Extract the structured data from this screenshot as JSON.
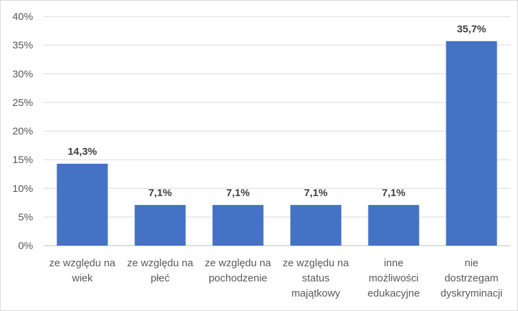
{
  "chart_data": {
    "type": "bar",
    "title": "",
    "xlabel": "",
    "ylabel": "",
    "ylim": [
      0,
      40
    ],
    "yticks": [
      "0%",
      "5%",
      "10%",
      "15%",
      "20%",
      "25%",
      "30%",
      "35%",
      "40%"
    ],
    "grid": true,
    "legend": "none",
    "bar_color": "#4472C4",
    "categories": [
      [
        "ze względu na",
        "wiek"
      ],
      [
        "ze względu na",
        "płeć"
      ],
      [
        "ze względu na",
        "pochodzenie"
      ],
      [
        "ze względu na",
        "status",
        "majątkowy"
      ],
      [
        "inne",
        "możliwości",
        "edukacyjne"
      ],
      [
        "nie",
        "dostrzegam",
        "dyskryminacji"
      ]
    ],
    "values": [
      14.3,
      7.1,
      7.1,
      7.1,
      7.1,
      35.7
    ],
    "data_labels": [
      "14,3%",
      "7,1%",
      "7,1%",
      "7,1%",
      "7,1%",
      "35,7%"
    ]
  }
}
